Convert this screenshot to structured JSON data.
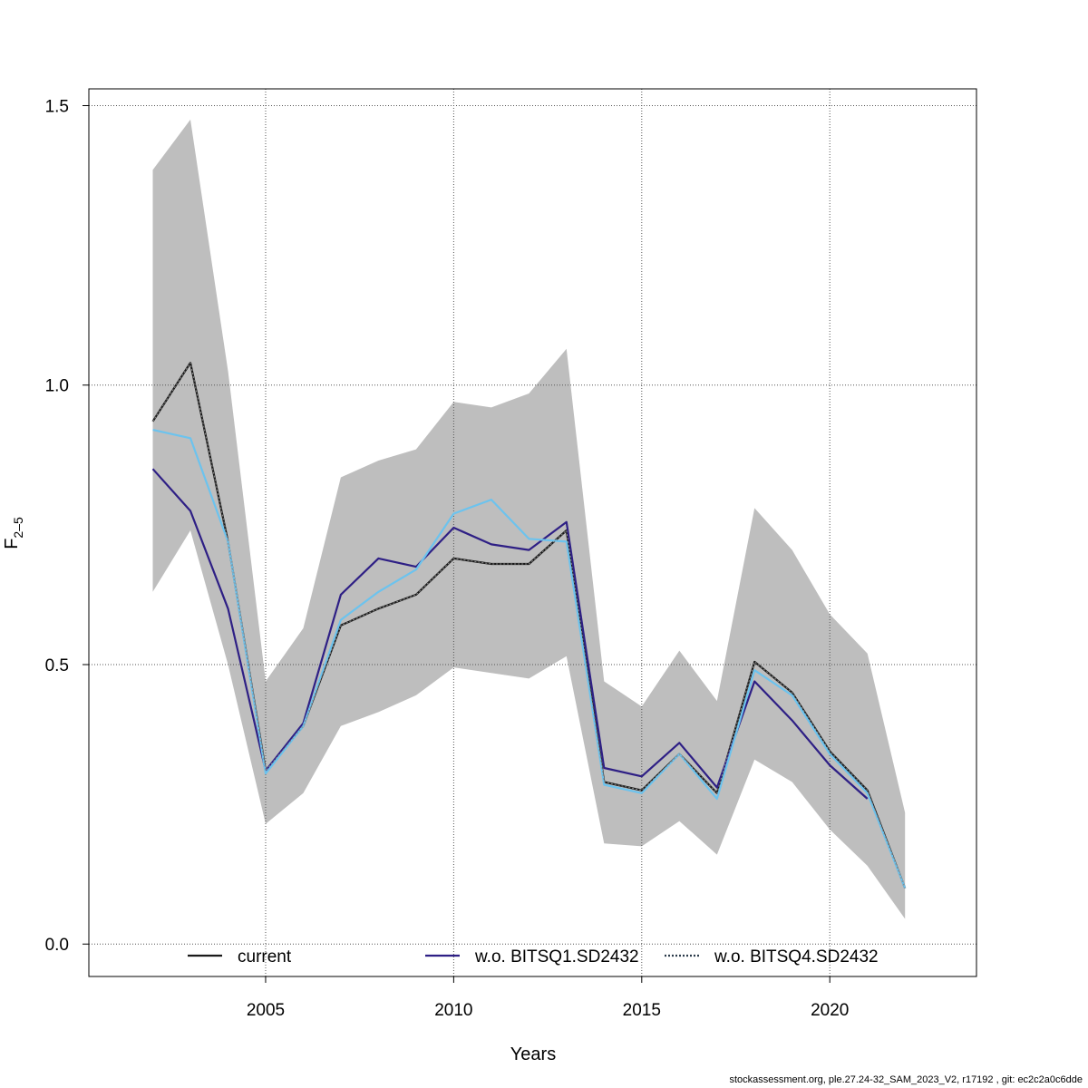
{
  "chart_data": {
    "type": "line",
    "xlabel": "Years",
    "ylabel_main": "F",
    "ylabel_sub": "2–5",
    "xlim": [
      2000.3,
      2023.9
    ],
    "ylim": [
      -0.058,
      1.53
    ],
    "x_ticks": [
      2005,
      2010,
      2015,
      2020
    ],
    "x_tick_labels": [
      "2005",
      "2010",
      "2015",
      "2020"
    ],
    "y_ticks": [
      0.0,
      0.5,
      1.0,
      1.5
    ],
    "y_tick_labels": [
      "0.0",
      "0.5",
      "1.0",
      "1.5"
    ],
    "grid": true,
    "legend_position": "bottom",
    "band": {
      "x": [
        2002,
        2003,
        2004,
        2005,
        2006,
        2007,
        2008,
        2009,
        2010,
        2011,
        2012,
        2013,
        2014,
        2015,
        2016,
        2017,
        2018,
        2019,
        2020,
        2021,
        2022
      ],
      "lower": [
        0.63,
        0.74,
        0.5,
        0.215,
        0.27,
        0.39,
        0.415,
        0.445,
        0.495,
        0.485,
        0.475,
        0.515,
        0.18,
        0.175,
        0.22,
        0.16,
        0.33,
        0.29,
        0.205,
        0.14,
        0.045
      ],
      "upper": [
        1.385,
        1.475,
        1.025,
        0.47,
        0.565,
        0.835,
        0.865,
        0.885,
        0.97,
        0.96,
        0.985,
        1.065,
        0.47,
        0.425,
        0.525,
        0.435,
        0.78,
        0.705,
        0.59,
        0.52,
        0.235
      ]
    },
    "series": [
      {
        "name": "current",
        "color": "#1a1a1a",
        "style": "solid",
        "x": [
          2002,
          2003,
          2004,
          2005,
          2006,
          2007,
          2008,
          2009,
          2010,
          2011,
          2012,
          2013,
          2014,
          2015,
          2016,
          2017,
          2018,
          2019,
          2020,
          2021,
          2022
        ],
        "values": [
          0.935,
          1.04,
          0.72,
          0.31,
          0.39,
          0.57,
          0.6,
          0.625,
          0.69,
          0.68,
          0.68,
          0.74,
          0.29,
          0.275,
          0.34,
          0.27,
          0.505,
          0.45,
          0.345,
          0.275,
          0.1
        ]
      },
      {
        "name": "w.o. BITSQ1.SD2432",
        "color": "#2e1f85",
        "style": "solid",
        "x": [
          2002,
          2003,
          2004,
          2005,
          2006,
          2007,
          2008,
          2009,
          2010,
          2011,
          2012,
          2013,
          2014,
          2015,
          2016,
          2017,
          2018,
          2019,
          2020,
          2021
        ],
        "values": [
          0.85,
          0.775,
          0.6,
          0.31,
          0.395,
          0.625,
          0.69,
          0.675,
          0.745,
          0.715,
          0.705,
          0.755,
          0.315,
          0.3,
          0.36,
          0.28,
          0.47,
          0.4,
          0.32,
          0.26
        ]
      },
      {
        "name": "w.o. BITSQ4.SD2432",
        "color": "#6cc3ee",
        "style": "dotted",
        "x": [
          2002,
          2003,
          2004,
          2005,
          2006,
          2007,
          2008,
          2009,
          2010,
          2011,
          2012,
          2013,
          2014,
          2015,
          2016,
          2017,
          2018,
          2019,
          2020,
          2021,
          2022
        ],
        "values": [
          0.92,
          0.905,
          0.72,
          0.305,
          0.39,
          0.58,
          0.63,
          0.67,
          0.77,
          0.795,
          0.725,
          0.72,
          0.285,
          0.27,
          0.34,
          0.26,
          0.49,
          0.445,
          0.34,
          0.27,
          0.1
        ]
      }
    ]
  },
  "footer_text": "stockassessment.org, ple.27.24-32_SAM_2023_V2, r17192 , git: ec2c2a0c6dde"
}
